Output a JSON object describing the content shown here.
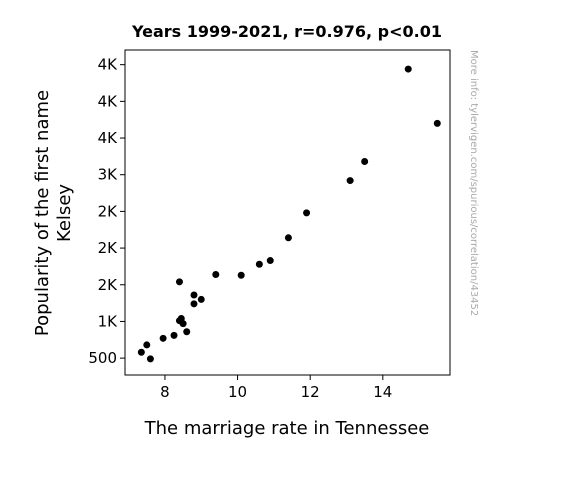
{
  "chart_data": {
    "type": "scatter",
    "title": "Years 1999-2021, r=0.976, p<0.01",
    "xlabel": "The marriage rate in Tennessee",
    "ylabel_lines": [
      "Popularity of the first name",
      "Kelsey"
    ],
    "xlim": [
      6.9,
      15.85
    ],
    "ylim": [
      270,
      4700
    ],
    "x_ticks": [
      {
        "value": 8,
        "label": "8"
      },
      {
        "value": 10,
        "label": "10"
      },
      {
        "value": 12,
        "label": "12"
      },
      {
        "value": 14,
        "label": "14"
      }
    ],
    "y_ticks": [
      {
        "value": 500,
        "label": "500"
      },
      {
        "value": 1000,
        "label": "1K"
      },
      {
        "value": 1500,
        "label": "2K"
      },
      {
        "value": 2000,
        "label": "2K"
      },
      {
        "value": 2500,
        "label": "2K"
      },
      {
        "value": 3000,
        "label": "3K"
      },
      {
        "value": 3500,
        "label": "4K"
      },
      {
        "value": 4000,
        "label": "4K"
      },
      {
        "value": 4500,
        "label": "4K"
      }
    ],
    "points": [
      {
        "x": 14.7,
        "y": 4440
      },
      {
        "x": 15.5,
        "y": 3700
      },
      {
        "x": 13.5,
        "y": 3180
      },
      {
        "x": 13.1,
        "y": 2920
      },
      {
        "x": 11.9,
        "y": 2480
      },
      {
        "x": 11.4,
        "y": 2140
      },
      {
        "x": 10.9,
        "y": 1830
      },
      {
        "x": 10.6,
        "y": 1780
      },
      {
        "x": 9.4,
        "y": 1640
      },
      {
        "x": 10.1,
        "y": 1630
      },
      {
        "x": 8.4,
        "y": 1540
      },
      {
        "x": 8.8,
        "y": 1360
      },
      {
        "x": 9.0,
        "y": 1300
      },
      {
        "x": 8.8,
        "y": 1240
      },
      {
        "x": 8.45,
        "y": 1040
      },
      {
        "x": 8.4,
        "y": 1010
      },
      {
        "x": 8.5,
        "y": 970
      },
      {
        "x": 8.6,
        "y": 860
      },
      {
        "x": 8.25,
        "y": 810
      },
      {
        "x": 7.95,
        "y": 770
      },
      {
        "x": 7.5,
        "y": 680
      },
      {
        "x": 7.35,
        "y": 580
      },
      {
        "x": 7.6,
        "y": 490
      }
    ],
    "point_color": "#000000",
    "grid": false
  },
  "watermark": "More info: tylervigen.com/spurious/correlation/43452"
}
